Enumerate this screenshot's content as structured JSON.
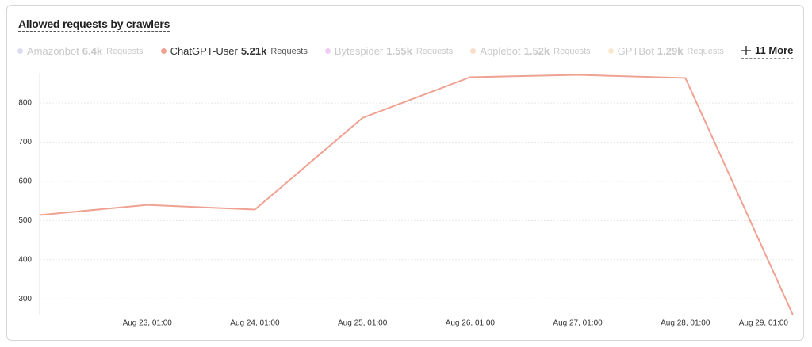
{
  "chart_data": {
    "type": "line",
    "title": "Allowed requests by crawlers",
    "categories": [
      null,
      "Aug 23, 01:00",
      "Aug 24, 01:00",
      "Aug 25, 01:00",
      "Aug 26, 01:00",
      "Aug 27, 01:00",
      "Aug 28, 01:00",
      "Aug 29, 01:00"
    ],
    "series": [
      {
        "name": "ChatGPT-User",
        "color": "#f0a292",
        "total": "5.21k",
        "unit": "Requests",
        "values": [
          514,
          540,
          528,
          762,
          866,
          872,
          864,
          259
        ]
      }
    ],
    "other_crawlers": [
      {
        "name": "Amazonbot",
        "total": "6.4k",
        "unit": "Requests",
        "color": "#dcdcf2"
      },
      {
        "name": "Bytespider",
        "total": "1.55k",
        "unit": "Requests",
        "color": "#efcdf3"
      },
      {
        "name": "Applebot",
        "total": "1.52k",
        "unit": "Requests",
        "color": "#fbdcc9"
      },
      {
        "name": "GPTBot",
        "total": "1.29k",
        "unit": "Requests",
        "color": "#fbe8cf"
      }
    ],
    "more": "11 More",
    "ylim": [
      258,
      877
    ],
    "yticks": [
      300,
      400,
      500,
      600,
      700,
      800
    ],
    "grid": true
  }
}
